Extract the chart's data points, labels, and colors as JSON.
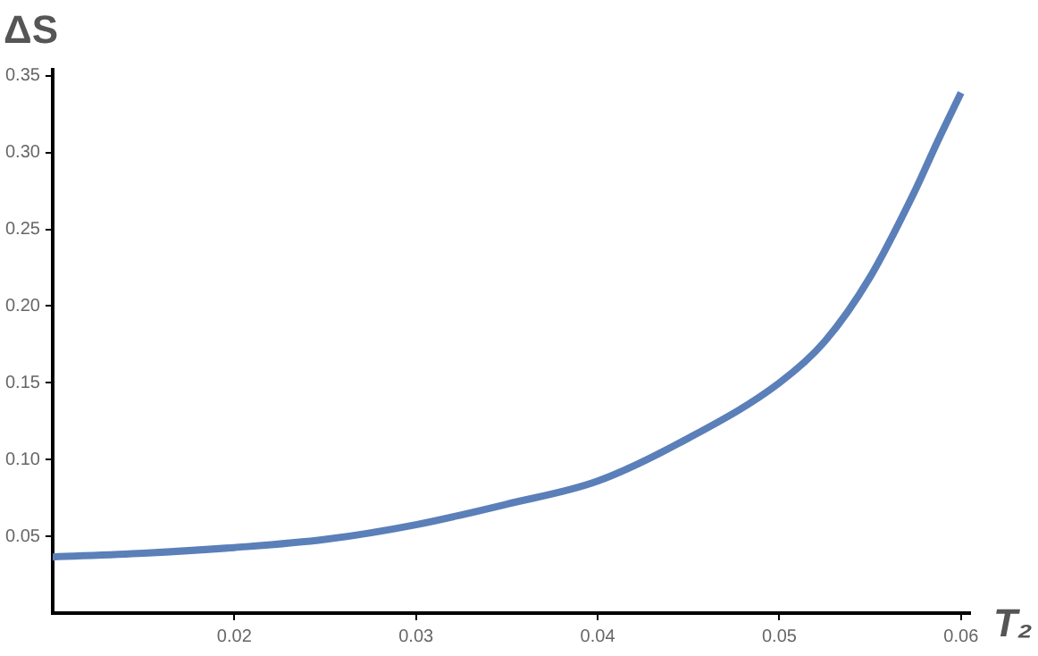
{
  "chart_data": {
    "type": "line",
    "xlabel": "T₂",
    "ylabel": "ΔS",
    "x": [
      0.01,
      0.015,
      0.02,
      0.025,
      0.03,
      0.035,
      0.04,
      0.045,
      0.05,
      0.0525,
      0.055,
      0.0575,
      0.0587,
      0.06
    ],
    "series": [
      {
        "color": "#5b7fb8",
        "values": [
          0.0366,
          0.039,
          0.0427,
          0.048,
          0.0576,
          0.071,
          0.086,
          0.114,
          0.15,
          0.177,
          0.219,
          0.276,
          0.307,
          0.339
        ]
      }
    ],
    "xlim": [
      0.01,
      0.0605
    ],
    "xticks": [
      0.02,
      0.03,
      0.04,
      0.05,
      0.06
    ],
    "ylim": [
      0,
      0.354
    ],
    "yticks": [
      {
        "value": 0.05,
        "label": "0.05"
      },
      {
        "value": 0.1,
        "label": "0.10"
      },
      {
        "value": 0.15,
        "label": "0.15"
      },
      {
        "value": 0.2,
        "label": "0.20"
      },
      {
        "value": 0.25,
        "label": "0.25"
      },
      {
        "value": 0.3,
        "label": "0.30"
      },
      {
        "value": 0.35,
        "label": "0.35"
      }
    ],
    "grid": false,
    "legend": false,
    "marker": "none",
    "line_style": "solid"
  }
}
